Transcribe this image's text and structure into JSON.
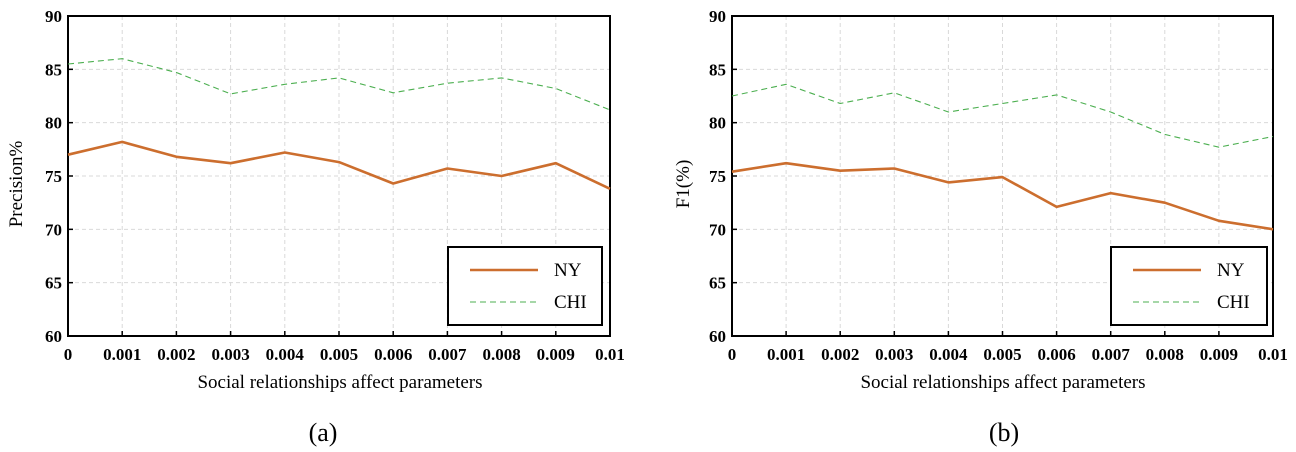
{
  "chart_data": [
    {
      "type": "line",
      "caption": "(a)",
      "xlabel": "Social relationships affect parameters",
      "ylabel": "Precision%",
      "x_tick_labels": [
        "0",
        "0.001",
        "0.002",
        "0.003",
        "0.004",
        "0.005",
        "0.006",
        "0.007",
        "0.008",
        "0.009",
        "0.01"
      ],
      "y_tick_labels": [
        "60",
        "65",
        "70",
        "75",
        "80",
        "85",
        "90"
      ],
      "ylim": [
        60,
        90
      ],
      "grid": true,
      "legend_position": "bottom-right",
      "series": [
        {
          "name": "NY",
          "style": "solid",
          "color": "#cc6e2e",
          "values": [
            77.0,
            78.2,
            76.8,
            76.2,
            77.2,
            76.3,
            74.3,
            75.7,
            75.0,
            76.2,
            73.8
          ]
        },
        {
          "name": "CHI",
          "style": "dashed",
          "color": "#4caf50",
          "values": [
            85.5,
            86.0,
            84.7,
            82.7,
            83.6,
            84.2,
            82.8,
            83.7,
            84.2,
            83.2,
            81.2
          ]
        }
      ]
    },
    {
      "type": "line",
      "caption": "(b)",
      "xlabel": "Social relationships affect parameters",
      "ylabel": "F1(%)",
      "x_tick_labels": [
        "0",
        "0.001",
        "0.002",
        "0.003",
        "0.004",
        "0.005",
        "0.006",
        "0.007",
        "0.008",
        "0.009",
        "0.01"
      ],
      "y_tick_labels": [
        "60",
        "65",
        "70",
        "75",
        "80",
        "85",
        "90"
      ],
      "ylim": [
        60,
        90
      ],
      "grid": true,
      "legend_position": "bottom-right",
      "series": [
        {
          "name": "NY",
          "style": "solid",
          "color": "#cc6e2e",
          "values": [
            75.4,
            76.2,
            75.5,
            75.7,
            74.4,
            74.9,
            72.1,
            73.4,
            72.5,
            70.8,
            70.0
          ]
        },
        {
          "name": "CHI",
          "style": "dashed",
          "color": "#4caf50",
          "values": [
            82.5,
            83.6,
            81.8,
            82.8,
            81.0,
            81.8,
            82.6,
            81.0,
            78.9,
            77.7,
            78.7
          ]
        }
      ]
    }
  ]
}
